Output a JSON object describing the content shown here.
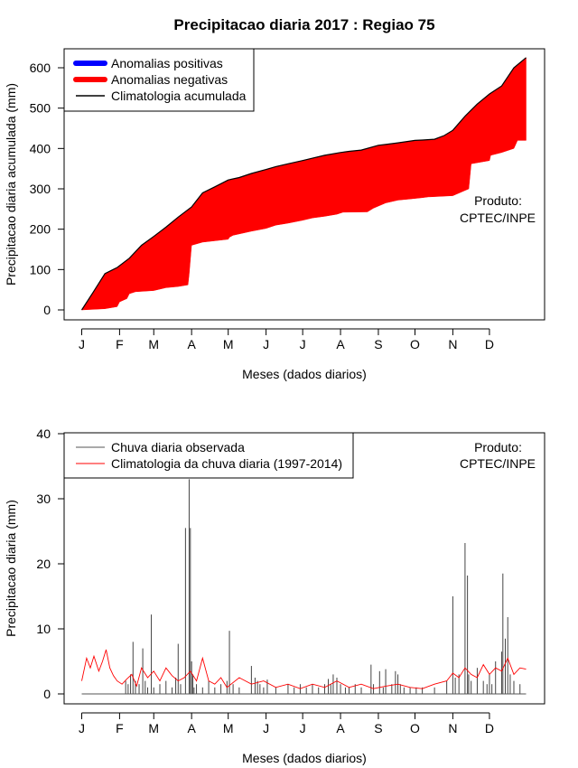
{
  "chart_data": [
    {
      "type": "area",
      "title": "Precipitacao diaria 2017 : Regiao 75",
      "xlabel": "Meses (dados diarios)",
      "ylabel": "Precipitacao diaria acumulada (mm)",
      "xlim": [
        1,
        365
      ],
      "ylim": [
        0,
        625
      ],
      "x_ticks": [
        1,
        32,
        60,
        91,
        121,
        152,
        182,
        213,
        244,
        274,
        305,
        335
      ],
      "x_tick_labels": [
        "J",
        "F",
        "M",
        "A",
        "M",
        "J",
        "J",
        "A",
        "S",
        "O",
        "N",
        "D"
      ],
      "y_ticks": [
        0,
        100,
        200,
        300,
        400,
        500,
        600
      ],
      "y_tick_labels": [
        "0",
        "100",
        "200",
        "300",
        "400",
        "500",
        "600"
      ],
      "legend": {
        "position": "top-left",
        "entries": [
          {
            "label": "Anomalias positivas",
            "color": "#0000ff"
          },
          {
            "label": "Anomalias negativas",
            "color": "#ff0000"
          },
          {
            "label": "Climatologia acumulada",
            "color": "#000000"
          }
        ]
      },
      "annotation": [
        "Produto:",
        "CPTEC/INPE"
      ],
      "climatology_cumulative": {
        "x": [
          1,
          10,
          20,
          30,
          40,
          50,
          60,
          70,
          80,
          91,
          100,
          110,
          121,
          130,
          140,
          152,
          160,
          170,
          182,
          190,
          200,
          213,
          220,
          230,
          244,
          250,
          260,
          274,
          280,
          290,
          298,
          305,
          315,
          325,
          335,
          345,
          355,
          365
        ],
        "y": [
          0,
          42,
          90,
          105,
          128,
          160,
          182,
          205,
          230,
          255,
          290,
          305,
          322,
          328,
          338,
          348,
          355,
          362,
          370,
          376,
          383,
          390,
          393,
          396,
          408,
          410,
          414,
          420,
          421,
          423,
          432,
          445,
          480,
          510,
          535,
          555,
          600,
          625
        ]
      },
      "observed_cumulative": {
        "x": [
          1,
          20,
          30,
          32,
          38,
          40,
          45,
          60,
          70,
          80,
          88,
          89,
          91,
          100,
          121,
          122,
          125,
          140,
          152,
          160,
          170,
          182,
          190,
          200,
          210,
          213,
          215,
          235,
          240,
          250,
          260,
          270,
          280,
          285,
          286,
          305,
          318,
          320,
          335,
          336,
          345,
          355,
          358,
          365
        ],
        "y": [
          0,
          3,
          8,
          20,
          28,
          40,
          45,
          48,
          55,
          58,
          62,
          88,
          160,
          168,
          175,
          180,
          185,
          195,
          202,
          210,
          215,
          222,
          228,
          232,
          237,
          240,
          242,
          243,
          252,
          265,
          272,
          275,
          278,
          280,
          280,
          283,
          300,
          362,
          370,
          383,
          390,
          400,
          420,
          420
        ]
      }
    },
    {
      "type": "bar",
      "title": "",
      "xlabel": "Meses (dados diarios)",
      "ylabel": "Precipitacao diaria (mm)",
      "xlim": [
        1,
        365
      ],
      "ylim": [
        0,
        40
      ],
      "x_ticks": [
        1,
        32,
        60,
        91,
        121,
        152,
        182,
        213,
        244,
        274,
        305,
        335
      ],
      "x_tick_labels": [
        "J",
        "F",
        "M",
        "A",
        "M",
        "J",
        "J",
        "A",
        "S",
        "O",
        "N",
        "D"
      ],
      "y_ticks": [
        0,
        10,
        20,
        30,
        40
      ],
      "y_tick_labels": [
        "0",
        "10",
        "20",
        "30",
        "40"
      ],
      "legend": {
        "position": "top-left",
        "entries": [
          {
            "label": "Chuva diaria observada",
            "color": "#555555"
          },
          {
            "label": "Climatologia da chuva diaria (1997-2014)",
            "color": "#ff0000"
          }
        ]
      },
      "annotation": [
        "Produto:",
        "CPTEC/INPE"
      ],
      "observed_daily": {
        "x": [
          37,
          39,
          41,
          43,
          45,
          48,
          51,
          53,
          55,
          58,
          60,
          65,
          70,
          75,
          78,
          80,
          82,
          86,
          89,
          90,
          91,
          92,
          93,
          95,
          100,
          105,
          110,
          115,
          120,
          122,
          125,
          130,
          140,
          143,
          145,
          147,
          150,
          153,
          160,
          170,
          175,
          180,
          185,
          190,
          195,
          200,
          203,
          205,
          207,
          210,
          213,
          217,
          220,
          225,
          230,
          238,
          240,
          245,
          248,
          250,
          255,
          258,
          260,
          262,
          265,
          270,
          275,
          280,
          290,
          300,
          305,
          307,
          310,
          315,
          317,
          318,
          320,
          325,
          330,
          333,
          335,
          337,
          340,
          345,
          346,
          348,
          350,
          352,
          355,
          360
        ],
        "y": [
          2,
          1.5,
          3,
          8,
          2,
          1.5,
          7,
          2,
          1,
          12.2,
          1,
          1.5,
          2,
          1,
          2.5,
          7.7,
          1.5,
          25.5,
          33,
          25.5,
          5,
          3,
          1,
          1.5,
          1,
          2,
          1,
          1.5,
          2,
          9.7,
          1.5,
          1,
          4.3,
          2.5,
          2,
          1.5,
          1,
          2.2,
          1,
          1.5,
          1,
          1.5,
          1,
          1.5,
          1,
          1.5,
          2.3,
          1.5,
          3,
          2.5,
          1.5,
          1,
          1,
          1.5,
          1,
          4.5,
          1.5,
          3.5,
          1,
          3.8,
          1.5,
          3.5,
          3,
          1.5,
          1,
          1,
          1,
          1,
          1,
          2,
          15,
          2.5,
          3,
          23.2,
          18.2,
          3,
          2,
          4,
          2,
          1.5,
          3,
          1.5,
          5,
          6.5,
          18.5,
          8.5,
          11.8,
          3,
          2,
          1.5
        ]
      },
      "climatology_daily": {
        "x": [
          1,
          5,
          8,
          11,
          15,
          18,
          21,
          24,
          27,
          30,
          34,
          38,
          42,
          46,
          50,
          55,
          60,
          65,
          70,
          75,
          80,
          85,
          90,
          95,
          100,
          105,
          110,
          115,
          120,
          130,
          140,
          150,
          160,
          170,
          180,
          190,
          200,
          210,
          220,
          230,
          240,
          250,
          260,
          270,
          280,
          290,
          300,
          305,
          310,
          315,
          320,
          325,
          330,
          335,
          340,
          345,
          350,
          355,
          360,
          365
        ],
        "y": [
          2,
          5.5,
          4,
          5.8,
          3.5,
          5,
          6.8,
          4,
          2.8,
          2,
          1.5,
          2.3,
          3,
          1.2,
          4,
          2.5,
          3.5,
          2,
          4,
          2.8,
          2,
          2.5,
          3.5,
          2,
          5.5,
          2,
          1.5,
          2.5,
          1,
          2.5,
          1.5,
          2,
          1,
          1.5,
          0.8,
          1.5,
          1,
          2,
          1,
          1.5,
          0.8,
          1.2,
          1.5,
          1,
          0.8,
          1.5,
          2,
          3.2,
          2.5,
          4,
          3,
          2.5,
          4.5,
          3,
          4,
          3.5,
          5.5,
          3,
          4,
          3.8
        ]
      }
    }
  ]
}
